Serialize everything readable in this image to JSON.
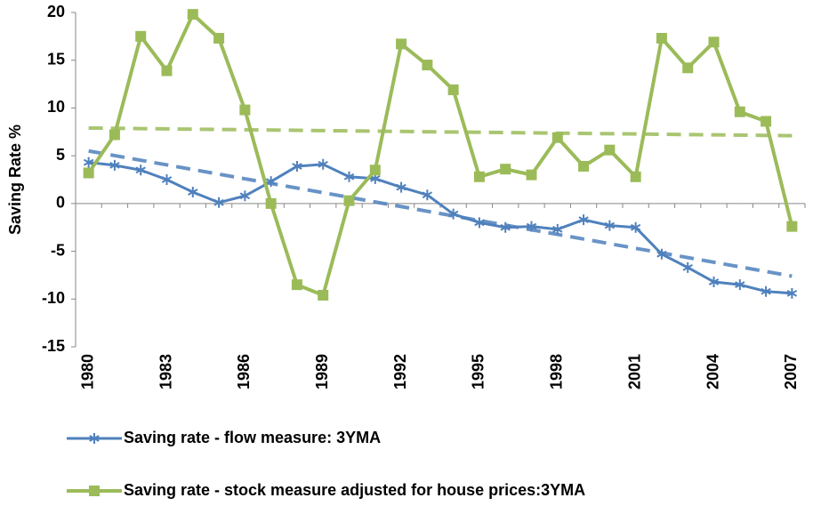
{
  "chart_data": {
    "type": "line",
    "y_label": "Saving Rate %",
    "categories": [
      "1980",
      null,
      null,
      "1983",
      null,
      null,
      "1986",
      null,
      null,
      "1989",
      null,
      null,
      "1992",
      null,
      null,
      "1995",
      null,
      null,
      "1998",
      null,
      null,
      "2001",
      null,
      null,
      "2004",
      null,
      null,
      "2007"
    ],
    "ylim": [
      -15,
      20
    ],
    "yticks": [
      -15,
      -10,
      -5,
      0,
      5,
      10,
      15,
      20
    ],
    "grid": false,
    "legend": "bottom",
    "series": [
      {
        "name": "Saving rate - flow measure: 3YMA",
        "color": "#4f81bd",
        "marker": "star",
        "values": [
          4.3,
          4.0,
          3.5,
          2.5,
          1.2,
          0.1,
          0.8,
          2.3,
          3.9,
          4.1,
          2.8,
          2.6,
          1.7,
          0.9,
          -1.1,
          -2.0,
          -2.5,
          -2.4,
          -2.7,
          -1.7,
          -2.3,
          -2.5,
          -5.3,
          -6.7,
          -8.2,
          -8.5,
          -9.2,
          -9.4
        ],
        "trend": [
          5.5,
          -7.6
        ]
      },
      {
        "name": "Saving rate - stock measure adjusted for house prices:3YMA",
        "color": "#9bbb59",
        "marker": "square",
        "values": [
          3.2,
          7.2,
          17.5,
          13.9,
          19.8,
          17.3,
          9.8,
          0.0,
          -8.5,
          -9.6,
          0.3,
          3.5,
          16.7,
          14.5,
          11.9,
          2.8,
          3.6,
          3.0,
          6.9,
          3.9,
          5.6,
          2.8,
          17.3,
          14.2,
          16.9,
          9.6,
          8.6,
          -2.4
        ],
        "trend": [
          7.9,
          7.1
        ]
      }
    ]
  }
}
